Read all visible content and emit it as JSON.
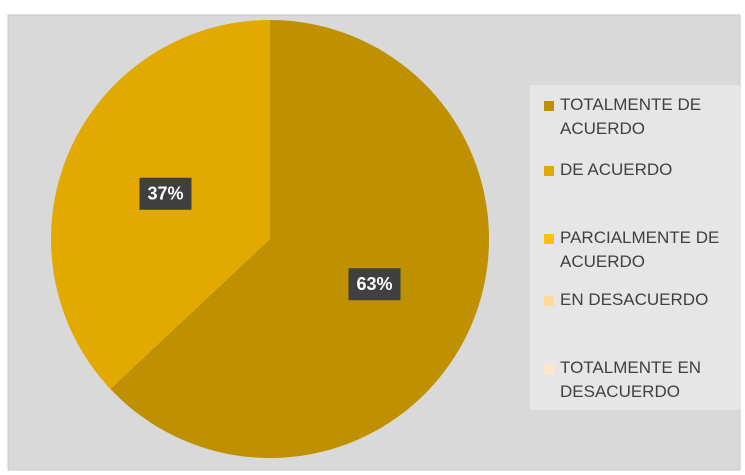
{
  "chart_data": {
    "type": "pie",
    "categories": [
      "TOTALMENTE DE ACUERDO",
      "DE ACUERDO",
      "PARCIALMENTE DE ACUERDO",
      "EN DESACUERDO",
      "TOTALMENTE EN DESACUERDO"
    ],
    "values": [
      63,
      37,
      0,
      0,
      0
    ],
    "value_labels": [
      "63%",
      "37%",
      null,
      null,
      null
    ],
    "colors": [
      "#bf9000",
      "#e2a900",
      "#ffc000",
      "#ffd99a",
      "#ffe6c8"
    ],
    "legend": "right"
  }
}
